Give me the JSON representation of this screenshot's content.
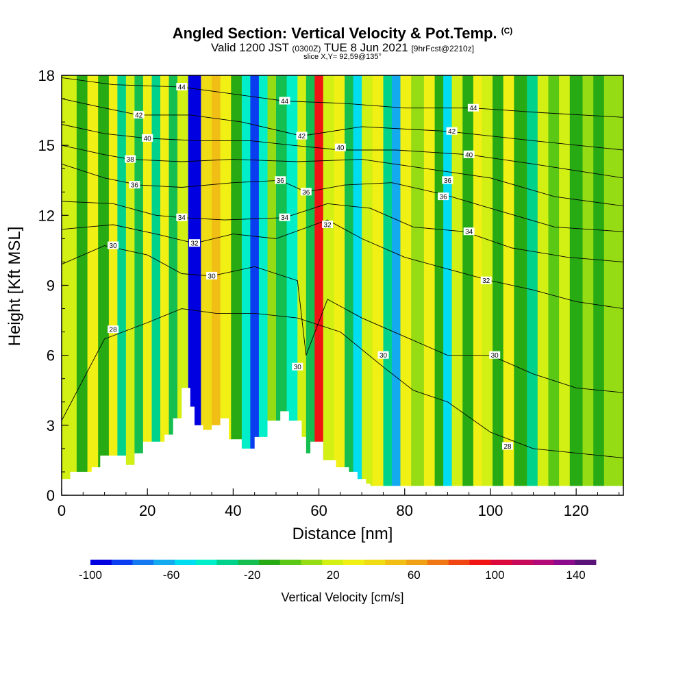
{
  "title": "Angled Section: Vertical Velocity & Pot.Temp.",
  "copyright_mark": "(C)",
  "subtitle_prefix": "Valid 1200 JST",
  "subtitle_utc": "(0300Z)",
  "subtitle_date": "TUE 8 Jun 2021",
  "subtitle_fcst": "[9hrFcst@2210z]",
  "slice_info": "slice X,Y= 92,59@135°",
  "chart_data": {
    "type": "heatmap",
    "xlabel": "Distance [nm]",
    "ylabel": "Height [Kft MSL]",
    "xlim": [
      0,
      131
    ],
    "ylim": [
      0,
      18
    ],
    "x_ticks": [
      0,
      20,
      40,
      60,
      80,
      100,
      120
    ],
    "y_ticks": [
      0,
      3,
      6,
      9,
      12,
      15,
      18
    ],
    "colorbar": {
      "label": "Vertical Velocity [cm/s]",
      "range": [
        -100,
        150
      ],
      "tick_values": [
        -100,
        -60,
        -20,
        20,
        60,
        100,
        140
      ],
      "colors": [
        "#0000e0",
        "#0a3cf0",
        "#1478f0",
        "#14aaf0",
        "#00dcf0",
        "#00eec8",
        "#00d28c",
        "#14be50",
        "#28aa14",
        "#5ac814",
        "#96dc14",
        "#d2f014",
        "#f0f014",
        "#f0dc14",
        "#f0be14",
        "#f0a014",
        "#f07814",
        "#f04614",
        "#f01414",
        "#dc0a3c",
        "#c80a5a",
        "#b40a78",
        "#8c0a8c",
        "#5a1478"
      ]
    },
    "velocity_columns": [
      {
        "x": 2,
        "v": 20
      },
      {
        "x": 5,
        "v": -10
      },
      {
        "x": 7,
        "v": 25
      },
      {
        "x": 10,
        "v": -15
      },
      {
        "x": 12,
        "v": 30
      },
      {
        "x": 14,
        "v": -35
      },
      {
        "x": 16,
        "v": 20
      },
      {
        "x": 18,
        "v": -20
      },
      {
        "x": 20,
        "v": 35
      },
      {
        "x": 22,
        "v": -30
      },
      {
        "x": 24,
        "v": 25
      },
      {
        "x": 26,
        "v": -20
      },
      {
        "x": 28,
        "v": 20
      },
      {
        "x": 31,
        "v": -95
      },
      {
        "x": 34,
        "v": 45
      },
      {
        "x": 36,
        "v": 55
      },
      {
        "x": 38,
        "v": 30
      },
      {
        "x": 41,
        "v": -15
      },
      {
        "x": 43,
        "v": -40
      },
      {
        "x": 45,
        "v": -85
      },
      {
        "x": 47,
        "v": -45
      },
      {
        "x": 49,
        "v": 10
      },
      {
        "x": 51,
        "v": -25
      },
      {
        "x": 54,
        "v": -45
      },
      {
        "x": 56,
        "v": 15
      },
      {
        "x": 58,
        "v": -20
      },
      {
        "x": 60,
        "v": 95
      },
      {
        "x": 62,
        "v": 15
      },
      {
        "x": 65,
        "v": 30
      },
      {
        "x": 67,
        "v": -20
      },
      {
        "x": 69,
        "v": -50
      },
      {
        "x": 71,
        "v": 20
      },
      {
        "x": 74,
        "v": 35
      },
      {
        "x": 76,
        "v": -30
      },
      {
        "x": 78,
        "v": -60
      },
      {
        "x": 80,
        "v": 30
      },
      {
        "x": 83,
        "v": 10
      },
      {
        "x": 86,
        "v": 30
      },
      {
        "x": 88,
        "v": -15
      },
      {
        "x": 90,
        "v": -50
      },
      {
        "x": 92,
        "v": 20
      },
      {
        "x": 95,
        "v": -10
      },
      {
        "x": 97,
        "v": 30
      },
      {
        "x": 99,
        "v": 15
      },
      {
        "x": 102,
        "v": -10
      },
      {
        "x": 104,
        "v": 25
      },
      {
        "x": 107,
        "v": -10
      },
      {
        "x": 110,
        "v": -30
      },
      {
        "x": 112,
        "v": 15
      },
      {
        "x": 115,
        "v": -5
      },
      {
        "x": 117,
        "v": 20
      },
      {
        "x": 120,
        "v": -10
      },
      {
        "x": 123,
        "v": 10
      },
      {
        "x": 125,
        "v": -15
      },
      {
        "x": 128,
        "v": 5
      },
      {
        "x": 131,
        "v": 10
      }
    ],
    "terrain_profile": [
      [
        0,
        0.7
      ],
      [
        2,
        1.0
      ],
      [
        7,
        1.2
      ],
      [
        9,
        1.7
      ],
      [
        15,
        1.3
      ],
      [
        17,
        1.8
      ],
      [
        19,
        2.3
      ],
      [
        24,
        2.6
      ],
      [
        26,
        3.3
      ],
      [
        28,
        4.6
      ],
      [
        30,
        3.8
      ],
      [
        31,
        3.0
      ],
      [
        33,
        2.8
      ],
      [
        35,
        3.0
      ],
      [
        37,
        3.3
      ],
      [
        39,
        2.4
      ],
      [
        42,
        2.0
      ],
      [
        45,
        2.5
      ],
      [
        48,
        3.2
      ],
      [
        51,
        3.6
      ],
      [
        53,
        3.2
      ],
      [
        56,
        2.5
      ],
      [
        57,
        1.8
      ],
      [
        58,
        2.3
      ],
      [
        60,
        2.3
      ],
      [
        61,
        1.5
      ],
      [
        64,
        1.2
      ],
      [
        67,
        1.0
      ],
      [
        69,
        0.7
      ],
      [
        71,
        0.5
      ],
      [
        72,
        0.4
      ],
      [
        131,
        0.4
      ]
    ],
    "contours": [
      {
        "level": 28,
        "points": [
          [
            0,
            3.2
          ],
          [
            10,
            6.7
          ],
          [
            20,
            7.4
          ],
          [
            28,
            8.0
          ],
          [
            36,
            7.8
          ],
          [
            45,
            7.8
          ],
          [
            55,
            7.6
          ],
          [
            65,
            7.0
          ],
          [
            75,
            5.5
          ],
          [
            82,
            4.5
          ],
          [
            90,
            4.0
          ],
          [
            100,
            2.7
          ],
          [
            110,
            2.0
          ],
          [
            131,
            1.6
          ]
        ],
        "labels": [
          {
            "x": 12,
            "y": 7.1,
            "text": "28"
          },
          {
            "x": 104,
            "y": 2.1,
            "text": "28"
          }
        ]
      },
      {
        "level": 30,
        "points": [
          [
            0,
            9.9
          ],
          [
            10,
            10.7
          ],
          [
            20,
            10.3
          ],
          [
            28,
            9.5
          ],
          [
            35,
            9.4
          ],
          [
            45,
            9.8
          ],
          [
            55,
            9.2
          ],
          [
            57,
            6.0
          ],
          [
            62,
            8.4
          ],
          [
            70,
            7.6
          ],
          [
            80,
            6.8
          ],
          [
            90,
            6.0
          ],
          [
            100,
            6.0
          ],
          [
            110,
            5.2
          ],
          [
            120,
            4.6
          ],
          [
            131,
            4.4
          ]
        ],
        "labels": [
          {
            "x": 12,
            "y": 10.7,
            "text": "30"
          },
          {
            "x": 35,
            "y": 9.4,
            "text": "30"
          },
          {
            "x": 55,
            "y": 5.5,
            "text": "30"
          },
          {
            "x": 75,
            "y": 6.0,
            "text": "30"
          },
          {
            "x": 101,
            "y": 6.0,
            "text": "30"
          }
        ]
      },
      {
        "level": 32,
        "points": [
          [
            0,
            11.4
          ],
          [
            12,
            11.6
          ],
          [
            22,
            11.2
          ],
          [
            31,
            10.8
          ],
          [
            40,
            11.2
          ],
          [
            50,
            11.0
          ],
          [
            62,
            11.8
          ],
          [
            70,
            11.0
          ],
          [
            80,
            10.2
          ],
          [
            90,
            9.7
          ],
          [
            100,
            9.2
          ],
          [
            110,
            8.8
          ],
          [
            120,
            8.3
          ],
          [
            131,
            8.0
          ]
        ],
        "labels": [
          {
            "x": 31,
            "y": 10.8,
            "text": "32"
          },
          {
            "x": 62,
            "y": 11.6,
            "text": "32"
          },
          {
            "x": 99,
            "y": 9.2,
            "text": "32"
          }
        ]
      },
      {
        "level": 34,
        "points": [
          [
            0,
            12.6
          ],
          [
            12,
            12.5
          ],
          [
            22,
            12.0
          ],
          [
            28,
            11.9
          ],
          [
            38,
            11.8
          ],
          [
            52,
            11.9
          ],
          [
            62,
            12.5
          ],
          [
            72,
            12.3
          ],
          [
            82,
            11.5
          ],
          [
            94,
            11.3
          ],
          [
            105,
            10.6
          ],
          [
            118,
            10.2
          ],
          [
            131,
            10.0
          ]
        ],
        "labels": [
          {
            "x": 28,
            "y": 11.9,
            "text": "34"
          },
          {
            "x": 52,
            "y": 11.9,
            "text": "34"
          },
          {
            "x": 95,
            "y": 11.3,
            "text": "34"
          }
        ]
      },
      {
        "level": 36,
        "points": [
          [
            0,
            14.2
          ],
          [
            10,
            13.6
          ],
          [
            18,
            13.3
          ],
          [
            28,
            13.2
          ],
          [
            40,
            13.4
          ],
          [
            51,
            13.5
          ],
          [
            57,
            13.0
          ],
          [
            66,
            13.3
          ],
          [
            77,
            13.4
          ],
          [
            89,
            12.9
          ],
          [
            100,
            12.3
          ],
          [
            115,
            11.5
          ],
          [
            131,
            11.3
          ]
        ],
        "labels": [
          {
            "x": 17,
            "y": 13.3,
            "text": "36"
          },
          {
            "x": 51,
            "y": 13.5,
            "text": "36"
          },
          {
            "x": 57,
            "y": 13.0,
            "text": "36"
          },
          {
            "x": 90,
            "y": 13.5,
            "text": "36"
          },
          {
            "x": 89,
            "y": 12.8,
            "text": "36"
          }
        ]
      },
      {
        "level": 38,
        "points": [
          [
            0,
            15.0
          ],
          [
            10,
            14.6
          ],
          [
            16,
            14.4
          ],
          [
            28,
            14.3
          ],
          [
            40,
            14.4
          ],
          [
            55,
            14.3
          ],
          [
            70,
            14.4
          ],
          [
            85,
            14.0
          ],
          [
            100,
            13.6
          ],
          [
            115,
            12.8
          ],
          [
            131,
            12.4
          ]
        ],
        "labels": [
          {
            "x": 16,
            "y": 14.4,
            "text": "38"
          }
        ]
      },
      {
        "level": 40,
        "points": [
          [
            0,
            15.9
          ],
          [
            10,
            15.5
          ],
          [
            20,
            15.3
          ],
          [
            32,
            15.2
          ],
          [
            44,
            15.2
          ],
          [
            54,
            15.0
          ],
          [
            65,
            14.8
          ],
          [
            78,
            14.8
          ],
          [
            95,
            14.6
          ],
          [
            110,
            14.2
          ],
          [
            131,
            13.6
          ]
        ],
        "labels": [
          {
            "x": 20,
            "y": 15.3,
            "text": "40"
          },
          {
            "x": 65,
            "y": 14.9,
            "text": "40"
          },
          {
            "x": 95,
            "y": 14.6,
            "text": "40"
          }
        ]
      },
      {
        "level": 42,
        "points": [
          [
            0,
            17.0
          ],
          [
            10,
            16.6
          ],
          [
            18,
            16.3
          ],
          [
            30,
            16.3
          ],
          [
            42,
            16.0
          ],
          [
            56,
            15.4
          ],
          [
            70,
            15.8
          ],
          [
            90,
            15.6
          ],
          [
            110,
            15.2
          ],
          [
            131,
            14.8
          ]
        ],
        "labels": [
          {
            "x": 18,
            "y": 16.3,
            "text": "42"
          },
          {
            "x": 56,
            "y": 15.4,
            "text": "42"
          },
          {
            "x": 91,
            "y": 15.6,
            "text": "42"
          }
        ]
      },
      {
        "level": 44,
        "points": [
          [
            0,
            17.9
          ],
          [
            12,
            17.6
          ],
          [
            28,
            17.5
          ],
          [
            40,
            17.2
          ],
          [
            52,
            16.9
          ],
          [
            66,
            16.8
          ],
          [
            80,
            16.6
          ],
          [
            96,
            16.6
          ],
          [
            112,
            16.4
          ],
          [
            131,
            16.2
          ]
        ],
        "labels": [
          {
            "x": 28,
            "y": 17.5,
            "text": "44"
          },
          {
            "x": 52,
            "y": 16.9,
            "text": "44"
          },
          {
            "x": 96,
            "y": 16.6,
            "text": "44"
          }
        ]
      }
    ]
  }
}
